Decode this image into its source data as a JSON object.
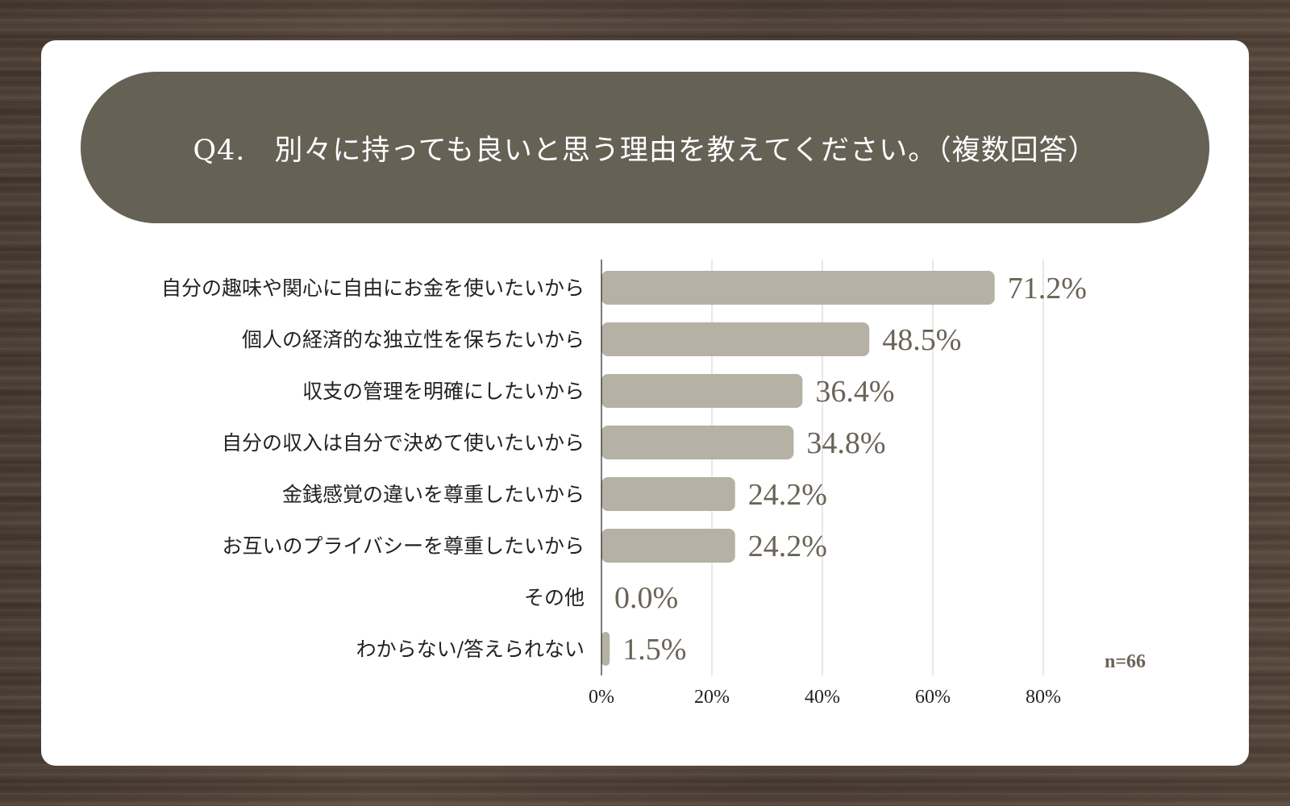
{
  "question": "Q4.　別々に持っても良いと思う理由を教えてください。（複数回答）",
  "sample_note": "n=66",
  "colors": {
    "background": "#54453a",
    "card": "#ffffff",
    "banner": "#656155",
    "bar": "#b5b1a4",
    "value_text": "#6a6457",
    "gridline": "#cfcfcf"
  },
  "chart_data": {
    "type": "bar",
    "orientation": "horizontal",
    "title": "Q4.　別々に持っても良いと思う理由を教えてください。（複数回答）",
    "categories": [
      "自分の趣味や関心に自由にお金を使いたいから",
      "個人の経済的な独立性を保ちたいから",
      "収支の管理を明確にしたいから",
      "自分の収入は自分で決めて使いたいから",
      "金銭感覚の違いを尊重したいから",
      "お互いのプライバシーを尊重したいから",
      "その他",
      "わからない/答えられない"
    ],
    "values": [
      71.2,
      48.5,
      36.4,
      34.8,
      24.2,
      24.2,
      0.0,
      1.5
    ],
    "value_labels": [
      "71.2%",
      "48.5%",
      "36.4%",
      "34.8%",
      "24.2%",
      "24.2%",
      "0.0%",
      "1.5%"
    ],
    "xlim": [
      0,
      80
    ],
    "xticks": [
      0,
      20,
      40,
      60,
      80
    ],
    "xtick_labels": [
      "0%",
      "20%",
      "40%",
      "60%",
      "80%"
    ],
    "grid": true,
    "legend": "none"
  }
}
